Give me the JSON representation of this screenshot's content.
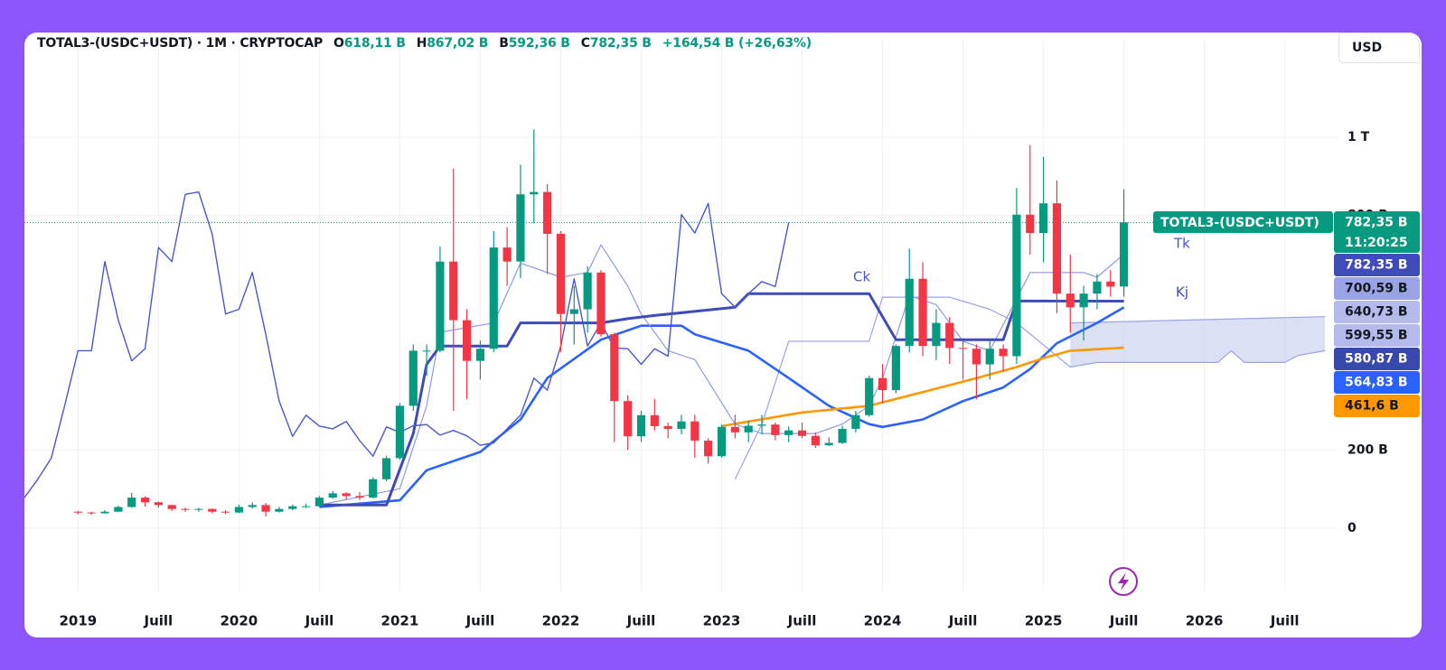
{
  "chart_data": {
    "type": "candlestick",
    "header": {
      "symbol": "TOTAL3-(USDC+USDT) · 1M · CRYPTOCAP",
      "fields": [
        {
          "key": "O",
          "value": "618,11 B"
        },
        {
          "key": "H",
          "value": "867,02 B"
        },
        {
          "key": "B",
          "value": "592,36 B"
        },
        {
          "key": "C",
          "value": "782,35 B"
        }
      ],
      "change": "+164,54 B (+26,63%)"
    },
    "currency": "USD",
    "x": [
      "2019-01",
      "2019-02",
      "2019-03",
      "2019-04",
      "2019-05",
      "2019-06",
      "2019-07",
      "2019-08",
      "2019-09",
      "2019-10",
      "2019-11",
      "2019-12",
      "2020-01",
      "2020-02",
      "2020-03",
      "2020-04",
      "2020-05",
      "2020-06",
      "2020-07",
      "2020-08",
      "2020-09",
      "2020-10",
      "2020-11",
      "2020-12",
      "2021-01",
      "2021-02",
      "2021-03",
      "2021-04",
      "2021-05",
      "2021-06",
      "2021-07",
      "2021-08",
      "2021-09",
      "2021-10",
      "2021-11",
      "2021-12",
      "2022-01",
      "2022-02",
      "2022-03",
      "2022-04",
      "2022-05",
      "2022-06",
      "2022-07",
      "2022-08",
      "2022-09",
      "2022-10",
      "2022-11",
      "2022-12",
      "2023-01",
      "2023-02",
      "2023-03",
      "2023-04",
      "2023-05",
      "2023-06",
      "2023-07",
      "2023-08",
      "2023-09",
      "2023-10",
      "2023-11",
      "2023-12",
      "2024-01",
      "2024-02",
      "2024-03",
      "2024-04",
      "2024-05",
      "2024-06",
      "2024-07",
      "2024-08",
      "2024-09",
      "2024-10",
      "2024-11",
      "2024-12",
      "2025-01",
      "2025-02",
      "2025-03",
      "2025-04",
      "2025-05",
      "2025-06",
      "2025-07"
    ],
    "series": [
      {
        "name": "TOTAL3-(USDC+USDT)",
        "color_up": "#089981",
        "color_down": "#f23645",
        "open": [
          42,
          40,
          38,
          42,
          54,
          78,
          66,
          59,
          49,
          47,
          49,
          42,
          40,
          54,
          59,
          42,
          49,
          56,
          56,
          78,
          89,
          82,
          78,
          125,
          179,
          313,
          454,
          454,
          682,
          532,
          428,
          459,
          718,
          682,
          854,
          860,
          753,
          548,
          560,
          654,
          496,
          325,
          235,
          289,
          261,
          254,
          273,
          224,
          184,
          259,
          245,
          262,
          265,
          238,
          250,
          236,
          212,
          218,
          254,
          289,
          384,
          353,
          466,
          638,
          466,
          525,
          461,
          459,
          419,
          459,
          440,
          802,
          755,
          831,
          600,
          565,
          600,
          631,
          618
        ],
        "high": [
          44,
          42,
          46,
          58,
          90,
          82,
          68,
          60,
          52,
          52,
          50,
          46,
          60,
          66,
          64,
          54,
          60,
          62,
          82,
          95,
          92,
          92,
          130,
          185,
          320,
          470,
          470,
          720,
          920,
          560,
          480,
          760,
          770,
          930,
          1020,
          880,
          760,
          620,
          670,
          660,
          500,
          340,
          300,
          330,
          270,
          290,
          290,
          230,
          265,
          290,
          275,
          290,
          270,
          260,
          270,
          245,
          232,
          262,
          300,
          390,
          420,
          470,
          715,
          680,
          560,
          540,
          480,
          470,
          480,
          470,
          870,
          980,
          950,
          890,
          700,
          620,
          650,
          660,
          867
        ],
        "low": [
          35,
          34,
          37,
          41,
          52,
          55,
          52,
          44,
          42,
          42,
          38,
          36,
          38,
          50,
          30,
          40,
          46,
          52,
          55,
          75,
          72,
          72,
          76,
          120,
          175,
          300,
          390,
          450,
          300,
          330,
          380,
          450,
          620,
          640,
          780,
          650,
          450,
          470,
          500,
          490,
          220,
          200,
          220,
          250,
          230,
          240,
          180,
          165,
          180,
          230,
          220,
          240,
          225,
          220,
          230,
          205,
          210,
          215,
          245,
          285,
          320,
          345,
          450,
          440,
          430,
          420,
          380,
          330,
          380,
          400,
          420,
          700,
          680,
          550,
          500,
          480,
          560,
          592,
          592
        ],
        "close": [
          40,
          38,
          42,
          54,
          78,
          66,
          59,
          49,
          47,
          49,
          42,
          40,
          54,
          59,
          42,
          49,
          56,
          56,
          78,
          89,
          82,
          78,
          125,
          179,
          313,
          454,
          454,
          682,
          532,
          428,
          459,
          718,
          682,
          854,
          860,
          753,
          548,
          560,
          654,
          496,
          325,
          235,
          289,
          261,
          254,
          273,
          224,
          184,
          259,
          245,
          262,
          265,
          238,
          250,
          236,
          212,
          218,
          254,
          289,
          384,
          353,
          466,
          638,
          466,
          525,
          461,
          459,
          419,
          459,
          440,
          802,
          755,
          831,
          600,
          565,
          600,
          631,
          618,
          782
        ]
      }
    ],
    "lines": [
      {
        "color": "#9aa4e4",
        "x": [
          "2025-03",
          "2026-10"
        ],
        "values": [
          525,
          541
        ]
      },
      {
        "color": "#9aa4e4",
        "x": [
          "2023-02",
          "2023-04",
          "2023-06",
          "2023-12",
          "2024-01",
          "2024-06",
          "2024-09",
          "2024-11",
          "2025-03",
          "2025-05",
          "2026-02",
          "2026-03",
          "2026-04",
          "2026-07",
          "2026-08",
          "2026-10"
        ],
        "values": [
          125,
          266,
          478,
          478,
          591,
          591,
          560,
          525,
          412,
          424,
          424,
          454,
          424,
          424,
          442,
          454
        ]
      },
      {
        "color": "#2962ff",
        "x": [
          "2020-07",
          "2021-01",
          "2021-03",
          "2021-07",
          "2021-10",
          "2021-12",
          "2022-04",
          "2022-07",
          "2022-10",
          "2022-11",
          "2023-03",
          "2023-06",
          "2023-09",
          "2023-12",
          "2024-01",
          "2024-04",
          "2024-07",
          "2024-10",
          "2024-12",
          "2025-02",
          "2025-05",
          "2025-07"
        ],
        "values": [
          54,
          71,
          148,
          195,
          278,
          384,
          482,
          518,
          518,
          496,
          454,
          384,
          313,
          266,
          259,
          278,
          325,
          360,
          407,
          473,
          525,
          564.83
        ]
      },
      {
        "color": "#ff9800",
        "x": [
          "2023-01",
          "2023-07",
          "2023-12",
          "2024-04",
          "2024-08",
          "2024-11",
          "2025-01",
          "2025-03",
          "2025-07"
        ],
        "values": [
          261,
          296,
          313,
          348,
          384,
          412,
          435,
          454,
          461.6
        ]
      },
      {
        "name": "Tk",
        "color": "#8e9ae0",
        "x": [
          "2020-07",
          "2021-01",
          "2021-03",
          "2021-04",
          "2021-06",
          "2021-08",
          "2021-10",
          "2021-11",
          "2022-01",
          "2022-03",
          "2022-04",
          "2022-06",
          "2022-07",
          "2022-09",
          "2022-11",
          "2023-02",
          "2023-04",
          "2023-06",
          "2023-08",
          "2023-10",
          "2023-12",
          "2024-01",
          "2024-03",
          "2024-05",
          "2024-07",
          "2024-09",
          "2024-12",
          "2025-02",
          "2025-04",
          "2025-05",
          "2025-07"
        ],
        "values": [
          59,
          101,
          313,
          501,
          513,
          525,
          678,
          666,
          642,
          654,
          725,
          619,
          548,
          454,
          431,
          266,
          242,
          242,
          242,
          266,
          313,
          384,
          595,
          572,
          478,
          454,
          654,
          654,
          654,
          642,
          700.59
        ]
      },
      {
        "name": "Kj",
        "color": "#3f4bb8",
        "x": [
          "2020-07",
          "2020-12",
          "2021-02",
          "2021-03",
          "2021-04",
          "2021-09",
          "2021-10",
          "2022-04",
          "2022-06",
          "2022-08",
          "2023-02",
          "2023-03",
          "2023-12",
          "2024-02",
          "2024-10",
          "2024-11",
          "2025-07"
        ],
        "values": [
          59,
          59,
          242,
          419,
          466,
          466,
          525,
          525,
          536,
          544,
          565,
          600,
          600,
          482,
          482,
          581,
          580.87
        ]
      },
      {
        "name": "Ck",
        "color": "#4a58d0",
        "source": "close"
      }
    ],
    "cloud": {
      "color": "#c5cbef"
    },
    "xlim": [
      "2018-09",
      "2026-11"
    ],
    "xticks": [
      {
        "value": "2019-01",
        "label": "2019"
      },
      {
        "value": "2019-07",
        "label": "Juill"
      },
      {
        "value": "2020-01",
        "label": "2020"
      },
      {
        "value": "2020-07",
        "label": "Juill"
      },
      {
        "value": "2021-01",
        "label": "2021"
      },
      {
        "value": "2021-07",
        "label": "Juill"
      },
      {
        "value": "2022-01",
        "label": "2022"
      },
      {
        "value": "2022-07",
        "label": "Juill"
      },
      {
        "value": "2023-01",
        "label": "2023"
      },
      {
        "value": "2023-07",
        "label": "Juill"
      },
      {
        "value": "2024-01",
        "label": "2024"
      },
      {
        "value": "2024-07",
        "label": "Juill"
      },
      {
        "value": "2025-01",
        "label": "2025"
      },
      {
        "value": "2025-07",
        "label": "Juill"
      },
      {
        "value": "2026-01",
        "label": "2026"
      },
      {
        "value": "2026-07",
        "label": "Juill"
      }
    ],
    "ylim": [
      -162,
      1208
    ],
    "yticks": [
      0,
      {
        "value": 200,
        "label": "200 B"
      },
      {
        "value": 800,
        "label": "800 B"
      },
      {
        "value": 1000,
        "label": "1 T"
      }
    ],
    "grid": true,
    "countdown": "11:20:25",
    "price_labels": [
      {
        "label": "782,35 B",
        "color": "#089981",
        "text_color": "#ffffff"
      },
      {
        "label": "782,35 B",
        "color": "#3f4bb8",
        "text_color": "#ffffff"
      },
      {
        "label": "700,59 B",
        "color": "#9aa4e4",
        "text_color": "#131722"
      },
      {
        "label": "640,73 B",
        "color": "#b4bbec",
        "text_color": "#131722"
      },
      {
        "label": "599,55 B",
        "color": "#b4bbec",
        "text_color": "#131722"
      },
      {
        "label": "580,87 B",
        "color": "#3949ab",
        "text_color": "#ffffff"
      },
      {
        "label": "564,83 B",
        "color": "#2962ff",
        "text_color": "#ffffff"
      },
      {
        "label": "461,6 B",
        "color": "#ff9800",
        "text_color": "#131722"
      }
    ]
  }
}
